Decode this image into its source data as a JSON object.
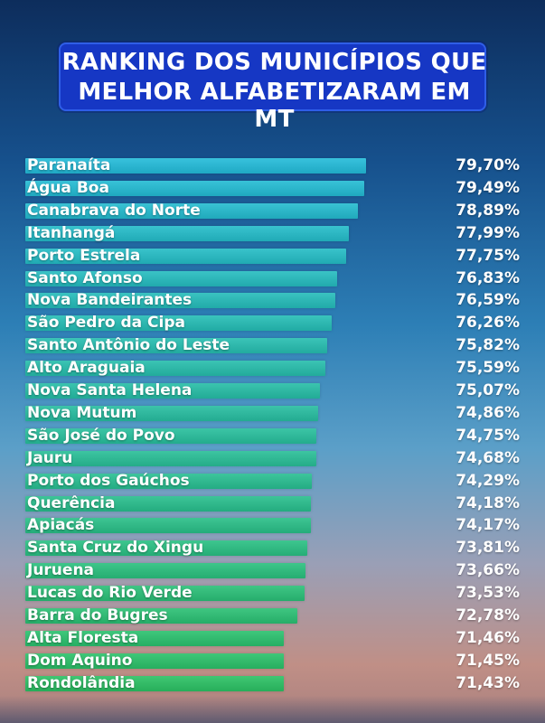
{
  "title": {
    "line1": "RANKING DOS MUNICÍPIOS QUE",
    "line2": "MELHOR ALFABETIZARAM EM MT"
  },
  "colors": {
    "title_box": "#1637c4",
    "bar_top": "#1fa9c4",
    "bar_bottom": "#27ae5a"
  },
  "chart_data": {
    "type": "bar",
    "orientation": "horizontal",
    "title": "RANKING DOS MUNICÍPIOS QUE MELHOR ALFABETIZARAM EM MT",
    "xlabel": "",
    "ylabel": "",
    "unit": "%",
    "grid": false,
    "categories": [
      "Paranaíta",
      "Água Boa",
      "Canabrava do Norte",
      "Itanhangá",
      "Porto Estrela",
      "Santo Afonso",
      "Nova Bandeirantes",
      "São Pedro da Cipa",
      "Santo Antônio do Leste",
      "Alto Araguaia",
      "Nova Santa Helena",
      "Nova Mutum",
      "São José do Povo",
      "Jauru",
      "Porto dos Gaúchos",
      "Querência",
      "Apiacás",
      "Santa Cruz do Xingu",
      "Juruena",
      "Lucas do Rio Verde",
      "Barra do Bugres",
      "Alta Floresta",
      "Dom Aquino",
      "Rondolândia"
    ],
    "values": [
      79.7,
      79.49,
      78.89,
      77.99,
      77.75,
      76.83,
      76.59,
      76.26,
      75.82,
      75.59,
      75.07,
      74.86,
      74.75,
      74.68,
      74.29,
      74.18,
      74.17,
      73.81,
      73.66,
      73.53,
      72.78,
      71.46,
      71.45,
      71.43
    ],
    "value_labels": [
      "79,70%",
      "79,49%",
      "78,89%",
      "77,99%",
      "77,75%",
      "76,83%",
      "76,59%",
      "76,26%",
      "75,82%",
      "75,59%",
      "75,07%",
      "74,86%",
      "74,75%",
      "74,68%",
      "74,29%",
      "74,18%",
      "74,17%",
      "73,81%",
      "73,66%",
      "73,53%",
      "72,78%",
      "71,46%",
      "71,45%",
      "71,43%"
    ]
  }
}
